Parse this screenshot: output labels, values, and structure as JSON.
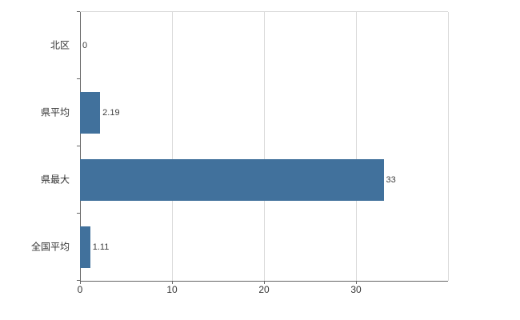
{
  "chart_data": {
    "type": "bar",
    "orientation": "horizontal",
    "title": "",
    "xlabel": "",
    "ylabel": "",
    "categories": [
      "北区",
      "県平均",
      "県最大",
      "全国平均"
    ],
    "values": [
      0,
      2.19,
      33,
      1.11
    ],
    "value_labels": [
      "0",
      "2.19",
      "33",
      "1.11"
    ],
    "x_ticks": [
      0,
      10,
      20,
      30
    ],
    "xlim": [
      0,
      40
    ],
    "grid": true,
    "legend": "none",
    "bar_color": "#41719C",
    "grid_color": "#d9d9d9",
    "axis_color": "#666666",
    "label_color": "#333333"
  }
}
